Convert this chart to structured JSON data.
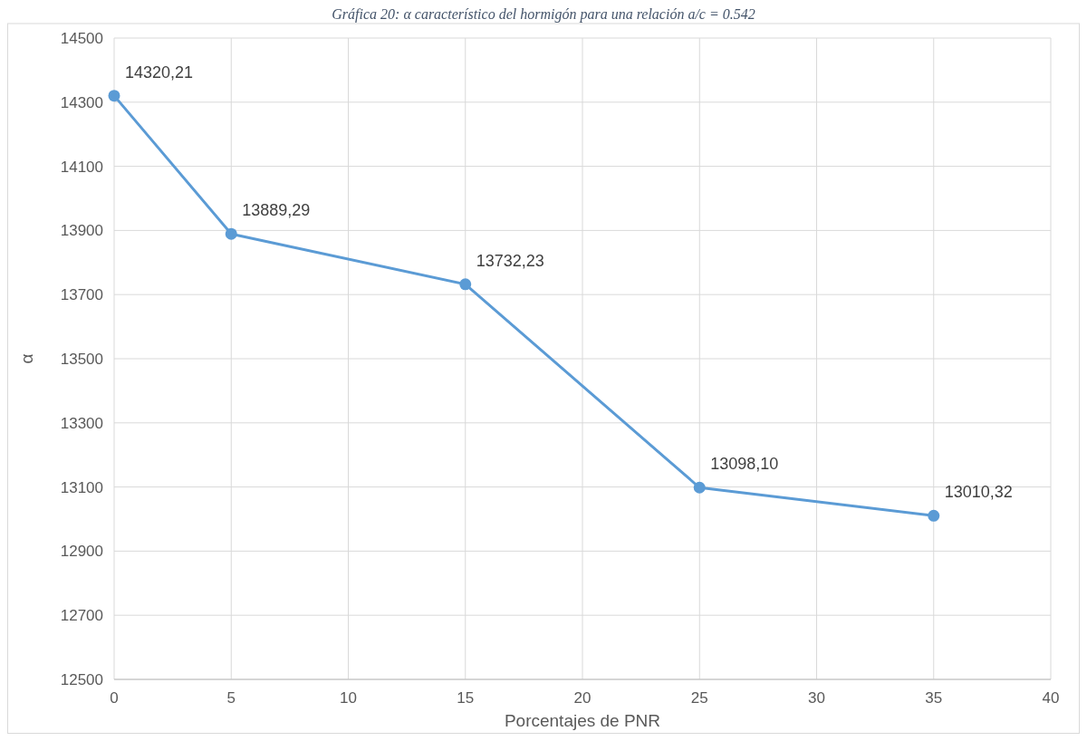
{
  "chart_data": {
    "type": "line",
    "title": "Gráfica 20: α característico del hormigón para una relación a/c = 0.542",
    "xlabel": "Porcentajes de PNR",
    "ylabel": "α",
    "x": [
      0,
      5,
      15,
      25,
      35
    ],
    "series": [
      {
        "color": "#5b9bd5",
        "values": [
          14320.21,
          13889.29,
          13732.23,
          13098.1,
          13010.32
        ],
        "value_labels": [
          "14320,21",
          "13889,29",
          "13732,23",
          "13098,10",
          "13010,32"
        ]
      }
    ],
    "xlim": [
      0,
      40
    ],
    "xticks": [
      0,
      5,
      10,
      15,
      20,
      25,
      30,
      35,
      40
    ],
    "ylim": [
      12500,
      14500
    ],
    "yticks": [
      12500,
      12700,
      12900,
      13100,
      13300,
      13500,
      13700,
      13900,
      14100,
      14300,
      14500
    ],
    "grid": true,
    "marker": "circle",
    "line_style": "solid"
  }
}
